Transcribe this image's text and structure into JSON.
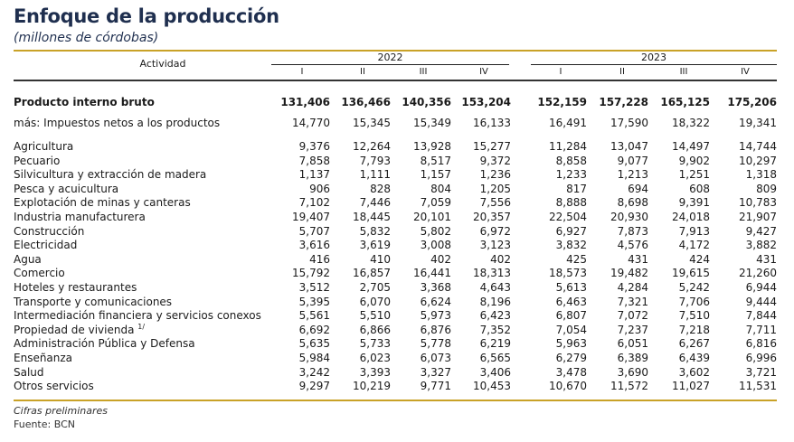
{
  "title": "Enfoque de la producción",
  "subtitle": "(millones de córdobas)",
  "header": {
    "activity_label": "Actividad",
    "years": [
      "2022",
      "2023"
    ],
    "quarters": [
      "I",
      "II",
      "III",
      "IV",
      "I",
      "II",
      "III",
      "IV"
    ]
  },
  "rows": [
    {
      "label": "Producto interno bruto",
      "values": [
        "131,406",
        "136,466",
        "140,356",
        "153,204",
        "152,159",
        "157,228",
        "165,125",
        "175,206"
      ]
    },
    {
      "label": "más: Impuestos netos a los productos",
      "values": [
        "14,770",
        "15,345",
        "15,349",
        "16,133",
        "16,491",
        "17,590",
        "18,322",
        "19,341"
      ]
    },
    {
      "label": "Agricultura",
      "values": [
        "9,376",
        "12,264",
        "13,928",
        "15,277",
        "11,284",
        "13,047",
        "14,497",
        "14,744"
      ]
    },
    {
      "label": "Pecuario",
      "values": [
        "7,858",
        "7,793",
        "8,517",
        "9,372",
        "8,858",
        "9,077",
        "9,902",
        "10,297"
      ]
    },
    {
      "label": "Silvicultura y extracción de madera",
      "values": [
        "1,137",
        "1,111",
        "1,157",
        "1,236",
        "1,233",
        "1,213",
        "1,251",
        "1,318"
      ]
    },
    {
      "label": "Pesca y acuicultura",
      "values": [
        "906",
        "828",
        "804",
        "1,205",
        "817",
        "694",
        "608",
        "809"
      ]
    },
    {
      "label": "Explotación de minas y canteras",
      "values": [
        "7,102",
        "7,446",
        "7,059",
        "7,556",
        "8,888",
        "8,698",
        "9,391",
        "10,783"
      ]
    },
    {
      "label": "Industria manufacturera",
      "values": [
        "19,407",
        "18,445",
        "20,101",
        "20,357",
        "22,504",
        "20,930",
        "24,018",
        "21,907"
      ]
    },
    {
      "label": "Construcción",
      "values": [
        "5,707",
        "5,832",
        "5,802",
        "6,972",
        "6,927",
        "7,873",
        "7,913",
        "9,427"
      ]
    },
    {
      "label": "Electricidad",
      "values": [
        "3,616",
        "3,619",
        "3,008",
        "3,123",
        "3,832",
        "4,576",
        "4,172",
        "3,882"
      ]
    },
    {
      "label": "Agua",
      "values": [
        "416",
        "410",
        "402",
        "402",
        "425",
        "431",
        "424",
        "431"
      ]
    },
    {
      "label": "Comercio",
      "values": [
        "15,792",
        "16,857",
        "16,441",
        "18,313",
        "18,573",
        "19,482",
        "19,615",
        "21,260"
      ]
    },
    {
      "label": "Hoteles y restaurantes",
      "values": [
        "3,512",
        "2,705",
        "3,368",
        "4,643",
        "5,613",
        "4,284",
        "5,242",
        "6,944"
      ]
    },
    {
      "label": "Transporte y comunicaciones",
      "values": [
        "5,395",
        "6,070",
        "6,624",
        "8,196",
        "6,463",
        "7,321",
        "7,706",
        "9,444"
      ]
    },
    {
      "label": "Intermediación financiera y servicios conexos",
      "values": [
        "5,561",
        "5,510",
        "5,973",
        "6,423",
        "6,807",
        "7,072",
        "7,510",
        "7,844"
      ]
    },
    {
      "label": "Propiedad de vivienda",
      "sup": "1/",
      "values": [
        "6,692",
        "6,866",
        "6,876",
        "7,352",
        "7,054",
        "7,237",
        "7,218",
        "7,711"
      ]
    },
    {
      "label": "Administración Pública y Defensa",
      "values": [
        "5,635",
        "5,733",
        "5,778",
        "6,219",
        "5,963",
        "6,051",
        "6,267",
        "6,816"
      ]
    },
    {
      "label": "Enseñanza",
      "values": [
        "5,984",
        "6,023",
        "6,073",
        "6,565",
        "6,279",
        "6,389",
        "6,439",
        "6,996"
      ]
    },
    {
      "label": "Salud",
      "values": [
        "3,242",
        "3,393",
        "3,327",
        "3,406",
        "3,478",
        "3,690",
        "3,602",
        "3,721"
      ]
    },
    {
      "label": "Otros servicios",
      "values": [
        "9,297",
        "10,219",
        "9,771",
        "10,453",
        "10,670",
        "11,572",
        "11,027",
        "11,531"
      ]
    }
  ],
  "footnotes": {
    "note": "Cifras preliminares",
    "source": "Fuente: BCN"
  },
  "colors": {
    "title": "#1f2f4f",
    "rule_gold": "#c9a227"
  }
}
